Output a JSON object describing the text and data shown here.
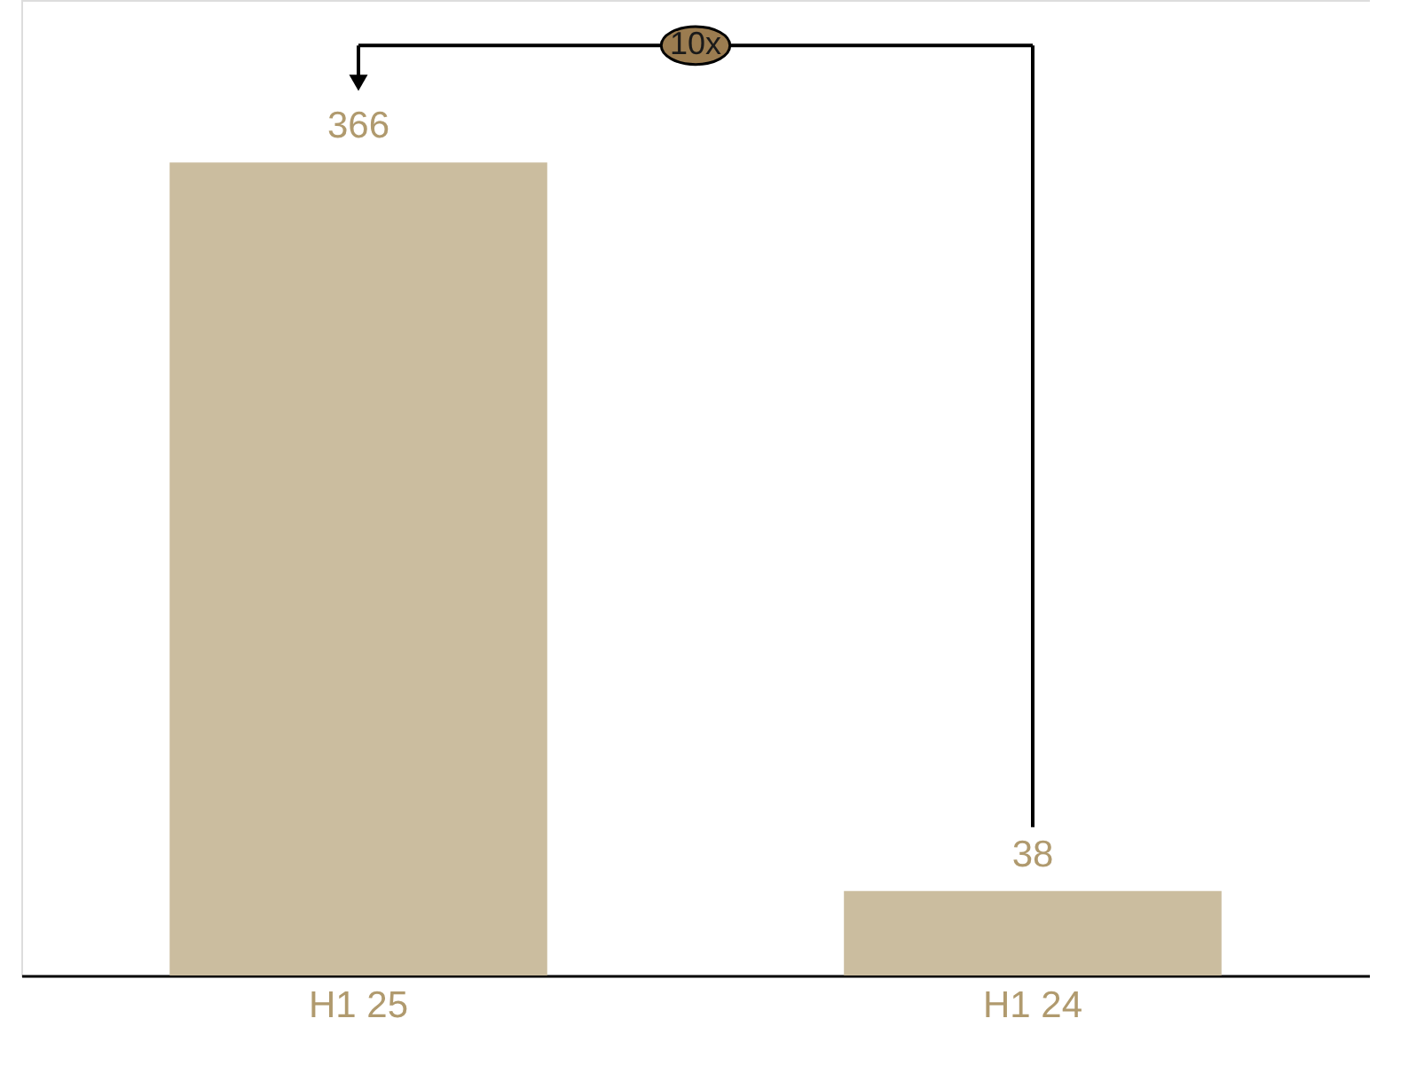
{
  "chart_data": {
    "type": "bar",
    "categories": [
      "H1 25",
      "H1 24"
    ],
    "values": [
      366,
      38
    ],
    "color": "#cbbd9f",
    "data_labels": true,
    "annotations": [
      "10x"
    ]
  }
}
